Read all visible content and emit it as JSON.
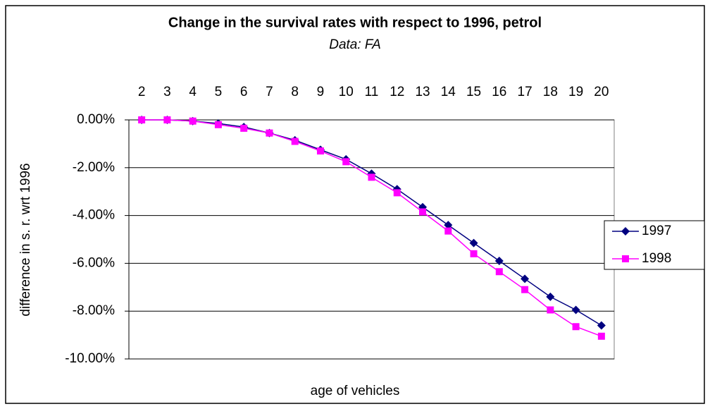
{
  "chart_data": {
    "type": "line",
    "title": "Change in the survival rates with respect to 1996, petrol",
    "subtitle": "Data: FA",
    "x_label": "age of vehicles",
    "y_label": "difference in s. r. wrt 1996",
    "categories": [
      "2",
      "3",
      "4",
      "5",
      "6",
      "7",
      "8",
      "9",
      "10",
      "11",
      "12",
      "13",
      "14",
      "15",
      "16",
      "17",
      "18",
      "19",
      "20"
    ],
    "series": [
      {
        "name": "1997",
        "color": "#000080",
        "marker": "diamond",
        "values": [
          0,
          0,
          -0.05,
          -0.15,
          -0.3,
          -0.55,
          -0.85,
          -1.25,
          -1.65,
          -2.25,
          -2.9,
          -3.65,
          -4.4,
          -5.15,
          -5.9,
          -6.65,
          -7.4,
          -7.95,
          -8.6
        ]
      },
      {
        "name": "1998",
        "color": "#ff00ff",
        "marker": "square",
        "values": [
          0,
          0,
          -0.05,
          -0.2,
          -0.35,
          -0.55,
          -0.9,
          -1.3,
          -1.75,
          -2.4,
          -3.05,
          -3.85,
          -4.65,
          -5.6,
          -6.35,
          -7.1,
          -7.95,
          -8.65,
          -9.05
        ]
      }
    ],
    "ylim": [
      -10,
      0
    ],
    "yticks": [
      {
        "value": 0,
        "label": "0.00%"
      },
      {
        "value": -2,
        "label": "-2.00%"
      },
      {
        "value": -4,
        "label": "-4.00%"
      },
      {
        "value": -6,
        "label": "-6.00%"
      },
      {
        "value": -8,
        "label": "-8.00%"
      },
      {
        "value": -10,
        "label": "-10.00%"
      }
    ],
    "grid": true,
    "legend": "right"
  }
}
